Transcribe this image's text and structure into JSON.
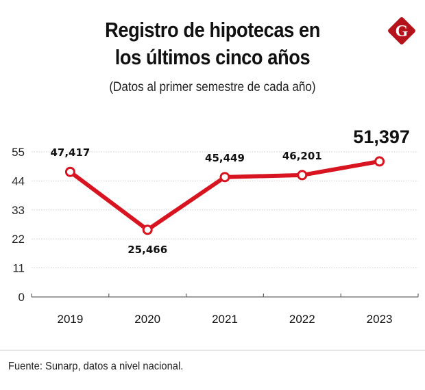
{
  "header": {
    "title_line1": "Registro de hipotecas en",
    "title_line2": "los últimos cinco años",
    "subtitle": "(Datos al primer semestre de cada año)"
  },
  "logo": {
    "icon": "gestion-g-logo-icon",
    "letter": "G",
    "color": "#b5121b"
  },
  "footer": {
    "source": "Fuente: Sunarp, datos a nivel nacional."
  },
  "colors": {
    "line": "#d7141f",
    "highlight_label": "#d7141f",
    "grid": "#cccccc",
    "axis": "#666666",
    "text": "#111111"
  },
  "chart_data": {
    "type": "line",
    "title": "Registro de hipotecas en los últimos cinco años",
    "subtitle": "(Datos al primer semestre de cada año)",
    "xlabel": "",
    "ylabel": "",
    "categories": [
      "2019",
      "2020",
      "2021",
      "2022",
      "2023"
    ],
    "series": [
      {
        "name": "Registro de hipotecas",
        "values": [
          47417,
          25466,
          45449,
          46201,
          51397
        ],
        "labels": [
          "47,417",
          "25,466",
          "45,449",
          "46,201",
          "51,397"
        ],
        "label_positions": [
          "above",
          "below",
          "above",
          "above",
          "above"
        ],
        "highlight_index": 4
      }
    ],
    "yaxis": {
      "ticks": [
        0,
        11,
        22,
        33,
        44,
        55
      ],
      "tick_labels": [
        "0",
        "11",
        "22",
        "33",
        "44",
        "55"
      ],
      "unit_scale": 1000,
      "ylim": [
        0,
        55
      ]
    },
    "grid": true,
    "grid_style": "dotted",
    "legend": "none",
    "source": "Fuente: Sunarp, datos a nivel nacional."
  }
}
